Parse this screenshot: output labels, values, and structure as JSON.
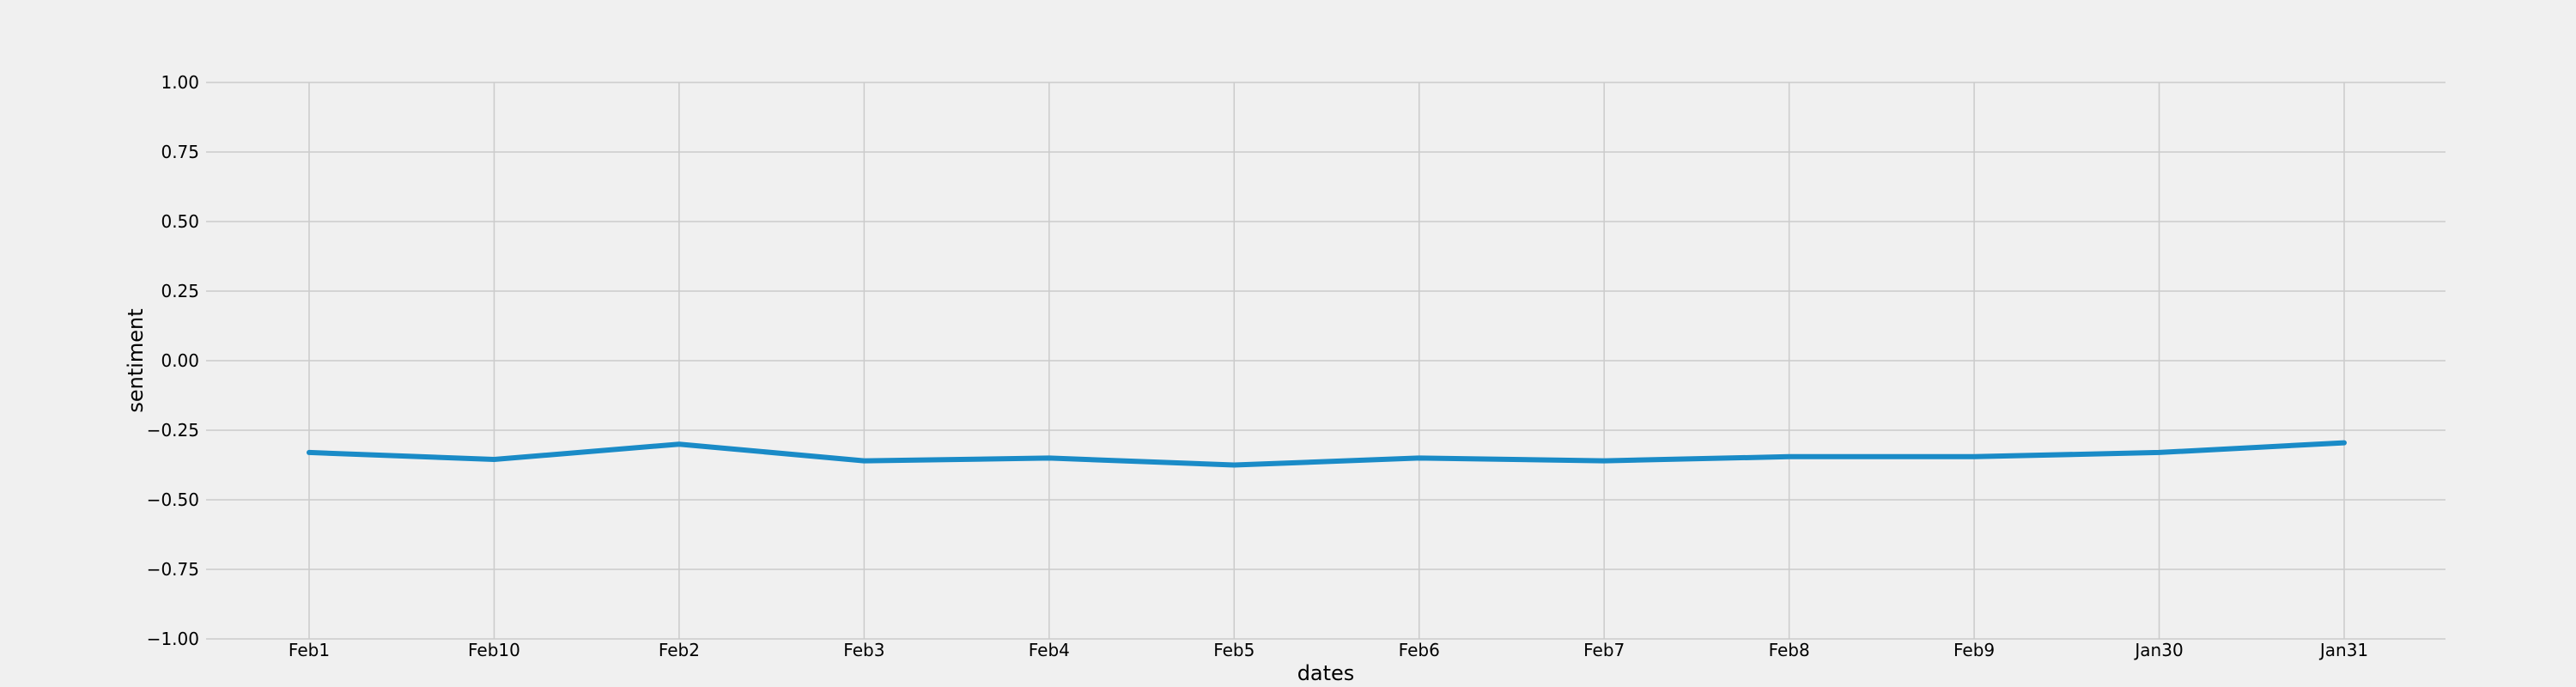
{
  "chart_data": {
    "type": "line",
    "title": "",
    "xlabel": "dates",
    "ylabel": "sentiment",
    "categories": [
      "Feb1",
      "Feb10",
      "Feb2",
      "Feb3",
      "Feb4",
      "Feb5",
      "Feb6",
      "Feb7",
      "Feb8",
      "Feb9",
      "Jan30",
      "Jan31"
    ],
    "series": [
      {
        "values": [
          -0.33,
          -0.355,
          -0.3,
          -0.36,
          -0.35,
          -0.375,
          -0.35,
          -0.36,
          -0.345,
          -0.345,
          -0.33,
          -0.295
        ],
        "color": "#1a8bc7"
      }
    ],
    "ylim": [
      -1.0,
      1.0
    ],
    "yticks": [
      "1.00",
      "0.75",
      "0.50",
      "0.25",
      "0.00",
      "−0.25",
      "−0.50",
      "−0.75",
      "−1.00"
    ],
    "grid": true,
    "style": "fivethirtyeight",
    "background": "#f0f0f0",
    "grid_color": "#cbcbcb"
  }
}
